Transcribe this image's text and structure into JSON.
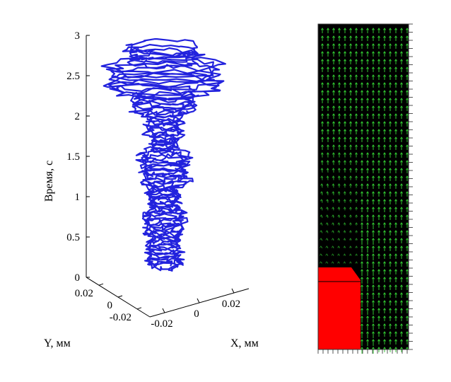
{
  "chart_data": [
    {
      "type": "line3d",
      "title": "",
      "zlabel": "Время, с",
      "xlabel": "X, мм",
      "ylabel": "Y, мм",
      "zlim": [
        0,
        3
      ],
      "z_ticks": [
        "0",
        "0.5",
        "1",
        "1.5",
        "2",
        "2.5",
        "3"
      ],
      "x_ticks": [
        "-0.02",
        "0",
        "0.02"
      ],
      "y_ticks": [
        "0.02",
        "0",
        "-0.02"
      ],
      "grid": false,
      "series_color": "#2222dd"
    },
    {
      "type": "vector-field",
      "title": "",
      "background_color": "#000000",
      "arrow_color": "#33cc33",
      "obstacle_color": "#ff0000",
      "flow_direction": "upward"
    }
  ]
}
